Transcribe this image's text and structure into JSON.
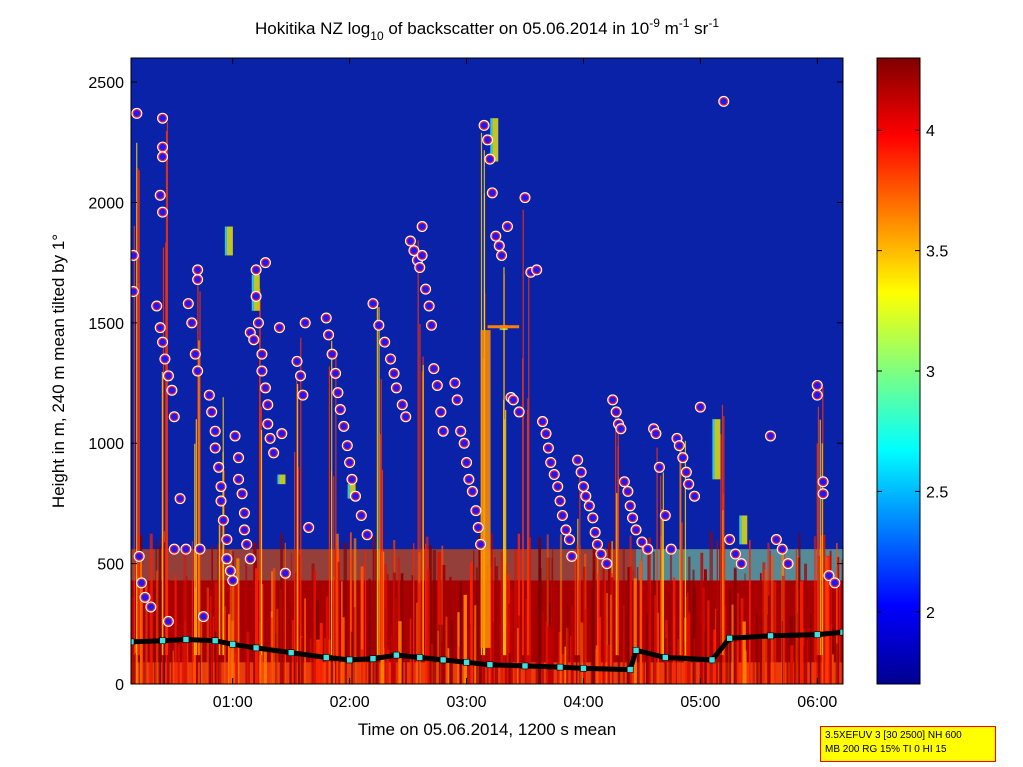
{
  "chart_data": {
    "type": "heatmap",
    "title": {
      "prefix": "Hokitika NZ log",
      "sub": "10",
      "middle": " of backscatter on 05.06.2014 in 10",
      "sup1": "-9",
      "unit1": " m",
      "sup2": "-1",
      "unit2": " sr",
      "sup3": "-1"
    },
    "xlabel": "Time on 05.06.2014, 1200 s mean",
    "ylabel": "Height in m, 240 m mean tilted by 1°",
    "x_ticks": [
      "01:00",
      "02:00",
      "03:00",
      "04:00",
      "05:00",
      "06:00"
    ],
    "x_tick_hours": [
      1,
      2,
      3,
      4,
      5,
      6
    ],
    "xlim_hours": [
      0.13,
      6.22
    ],
    "ylim": [
      0,
      2600
    ],
    "y_ticks": [
      0,
      500,
      1000,
      1500,
      2000,
      2500
    ],
    "y_tick_labels": [
      "0",
      "500",
      "1000",
      "1500",
      "2000",
      "2500"
    ],
    "colorbar": {
      "range": [
        1.7,
        4.3
      ],
      "ticks": [
        2,
        2.5,
        3,
        3.5,
        4
      ],
      "tick_labels": [
        "2",
        "2.5",
        "3",
        "3.5",
        "4"
      ],
      "colormap": "jet"
    },
    "background_value_color": "#0a22a8",
    "colors": {
      "cloud_marker_fill": "#1a1aff",
      "cloud_marker_edge": "#ff2020",
      "base_marker": "#40e0e0",
      "base_line": "#000000"
    },
    "boundary_layer_height": [
      [
        0.13,
        175
      ],
      [
        0.4,
        180
      ],
      [
        0.6,
        185
      ],
      [
        0.85,
        180
      ],
      [
        1.0,
        165
      ],
      [
        1.2,
        150
      ],
      [
        1.5,
        130
      ],
      [
        1.8,
        110
      ],
      [
        2.0,
        100
      ],
      [
        2.2,
        105
      ],
      [
        2.4,
        120
      ],
      [
        2.6,
        110
      ],
      [
        2.8,
        100
      ],
      [
        3.0,
        90
      ],
      [
        3.2,
        80
      ],
      [
        3.5,
        75
      ],
      [
        3.8,
        70
      ],
      [
        4.0,
        65
      ],
      [
        4.4,
        60
      ],
      [
        4.45,
        140
      ],
      [
        4.7,
        110
      ],
      [
        5.1,
        100
      ],
      [
        5.25,
        190
      ],
      [
        5.6,
        200
      ],
      [
        6.0,
        205
      ],
      [
        6.22,
        215
      ]
    ],
    "cloud_base_points": [
      [
        0.15,
        1780
      ],
      [
        0.15,
        1630
      ],
      [
        0.18,
        2370
      ],
      [
        0.2,
        530
      ],
      [
        0.22,
        420
      ],
      [
        0.25,
        360
      ],
      [
        0.3,
        320
      ],
      [
        0.4,
        2350
      ],
      [
        0.4,
        2230
      ],
      [
        0.4,
        2190
      ],
      [
        0.38,
        2030
      ],
      [
        0.4,
        1960
      ],
      [
        0.35,
        1570
      ],
      [
        0.38,
        1480
      ],
      [
        0.4,
        1420
      ],
      [
        0.42,
        1350
      ],
      [
        0.45,
        1280
      ],
      [
        0.48,
        1220
      ],
      [
        0.5,
        1110
      ],
      [
        0.5,
        560
      ],
      [
        0.45,
        260
      ],
      [
        0.55,
        770
      ],
      [
        0.6,
        560
      ],
      [
        0.62,
        1580
      ],
      [
        0.65,
        1500
      ],
      [
        0.68,
        1370
      ],
      [
        0.7,
        1300
      ],
      [
        0.7,
        1680
      ],
      [
        0.7,
        1720
      ],
      [
        0.72,
        560
      ],
      [
        0.75,
        280
      ],
      [
        0.8,
        1200
      ],
      [
        0.82,
        1130
      ],
      [
        0.85,
        1050
      ],
      [
        0.85,
        980
      ],
      [
        0.88,
        900
      ],
      [
        0.9,
        820
      ],
      [
        0.9,
        760
      ],
      [
        0.92,
        680
      ],
      [
        0.95,
        600
      ],
      [
        0.95,
        520
      ],
      [
        0.98,
        470
      ],
      [
        1.0,
        430
      ],
      [
        1.02,
        1030
      ],
      [
        1.05,
        940
      ],
      [
        1.05,
        850
      ],
      [
        1.08,
        790
      ],
      [
        1.1,
        710
      ],
      [
        1.1,
        640
      ],
      [
        1.12,
        580
      ],
      [
        1.15,
        520
      ],
      [
        1.15,
        1460
      ],
      [
        1.18,
        1430
      ],
      [
        1.2,
        1720
      ],
      [
        1.2,
        1610
      ],
      [
        1.22,
        1500
      ],
      [
        1.25,
        1370
      ],
      [
        1.25,
        1300
      ],
      [
        1.28,
        1230
      ],
      [
        1.3,
        1160
      ],
      [
        1.3,
        1080
      ],
      [
        1.32,
        1020
      ],
      [
        1.35,
        960
      ],
      [
        1.28,
        1750
      ],
      [
        1.4,
        1480
      ],
      [
        1.42,
        1040
      ],
      [
        1.45,
        460
      ],
      [
        1.55,
        1340
      ],
      [
        1.58,
        1280
      ],
      [
        1.6,
        1200
      ],
      [
        1.62,
        1500
      ],
      [
        1.65,
        650
      ],
      [
        1.8,
        1520
      ],
      [
        1.82,
        1450
      ],
      [
        1.85,
        1370
      ],
      [
        1.88,
        1290
      ],
      [
        1.9,
        1210
      ],
      [
        1.92,
        1140
      ],
      [
        1.95,
        1070
      ],
      [
        1.98,
        990
      ],
      [
        2.0,
        920
      ],
      [
        2.02,
        850
      ],
      [
        2.05,
        780
      ],
      [
        2.1,
        700
      ],
      [
        2.15,
        620
      ],
      [
        2.2,
        1580
      ],
      [
        2.25,
        1490
      ],
      [
        2.3,
        1420
      ],
      [
        2.35,
        1350
      ],
      [
        2.38,
        1290
      ],
      [
        2.4,
        1230
      ],
      [
        2.45,
        1160
      ],
      [
        2.48,
        1110
      ],
      [
        2.52,
        1840
      ],
      [
        2.55,
        1800
      ],
      [
        2.58,
        1760
      ],
      [
        2.6,
        1730
      ],
      [
        2.62,
        1900
      ],
      [
        2.62,
        1780
      ],
      [
        2.65,
        1640
      ],
      [
        2.68,
        1570
      ],
      [
        2.7,
        1490
      ],
      [
        2.72,
        1310
      ],
      [
        2.75,
        1240
      ],
      [
        2.78,
        1130
      ],
      [
        2.8,
        1050
      ],
      [
        2.9,
        1250
      ],
      [
        2.92,
        1180
      ],
      [
        2.95,
        1050
      ],
      [
        2.98,
        1000
      ],
      [
        3.0,
        920
      ],
      [
        3.02,
        850
      ],
      [
        3.05,
        800
      ],
      [
        3.08,
        720
      ],
      [
        3.1,
        650
      ],
      [
        3.12,
        580
      ],
      [
        3.15,
        2320
      ],
      [
        3.18,
        2260
      ],
      [
        3.2,
        2180
      ],
      [
        3.22,
        2040
      ],
      [
        3.25,
        1860
      ],
      [
        3.28,
        1820
      ],
      [
        3.3,
        1780
      ],
      [
        3.35,
        1900
      ],
      [
        3.38,
        1190
      ],
      [
        3.4,
        1180
      ],
      [
        3.45,
        1130
      ],
      [
        3.5,
        2020
      ],
      [
        3.55,
        1710
      ],
      [
        3.6,
        1720
      ],
      [
        3.65,
        1090
      ],
      [
        3.68,
        1040
      ],
      [
        3.7,
        980
      ],
      [
        3.72,
        920
      ],
      [
        3.75,
        870
      ],
      [
        3.78,
        820
      ],
      [
        3.8,
        760
      ],
      [
        3.82,
        700
      ],
      [
        3.85,
        640
      ],
      [
        3.88,
        600
      ],
      [
        3.9,
        530
      ],
      [
        3.95,
        930
      ],
      [
        3.98,
        880
      ],
      [
        4.0,
        820
      ],
      [
        4.02,
        780
      ],
      [
        4.05,
        740
      ],
      [
        4.08,
        690
      ],
      [
        4.1,
        630
      ],
      [
        4.12,
        580
      ],
      [
        4.15,
        540
      ],
      [
        4.2,
        500
      ],
      [
        4.25,
        1180
      ],
      [
        4.28,
        1130
      ],
      [
        4.3,
        1080
      ],
      [
        4.32,
        1060
      ],
      [
        4.35,
        840
      ],
      [
        4.38,
        800
      ],
      [
        4.4,
        740
      ],
      [
        4.42,
        690
      ],
      [
        4.45,
        640
      ],
      [
        4.5,
        590
      ],
      [
        4.55,
        560
      ],
      [
        4.6,
        1060
      ],
      [
        4.62,
        1040
      ],
      [
        4.65,
        900
      ],
      [
        4.7,
        700
      ],
      [
        4.75,
        560
      ],
      [
        4.8,
        1020
      ],
      [
        4.82,
        990
      ],
      [
        4.85,
        940
      ],
      [
        4.88,
        880
      ],
      [
        4.9,
        830
      ],
      [
        4.95,
        780
      ],
      [
        5.0,
        1150
      ],
      [
        5.2,
        2420
      ],
      [
        5.25,
        600
      ],
      [
        5.3,
        540
      ],
      [
        5.35,
        500
      ],
      [
        5.6,
        1030
      ],
      [
        5.65,
        600
      ],
      [
        5.7,
        560
      ],
      [
        5.75,
        500
      ],
      [
        6.0,
        1240
      ],
      [
        6.0,
        1200
      ],
      [
        6.05,
        840
      ],
      [
        6.05,
        790
      ],
      [
        6.1,
        450
      ],
      [
        6.15,
        420
      ]
    ]
  },
  "info_box": {
    "line1": "3.5XEFUV 3 [30 2500] NH 600",
    "line2": "MB 200 RG 15% TI 0 HI 15"
  }
}
